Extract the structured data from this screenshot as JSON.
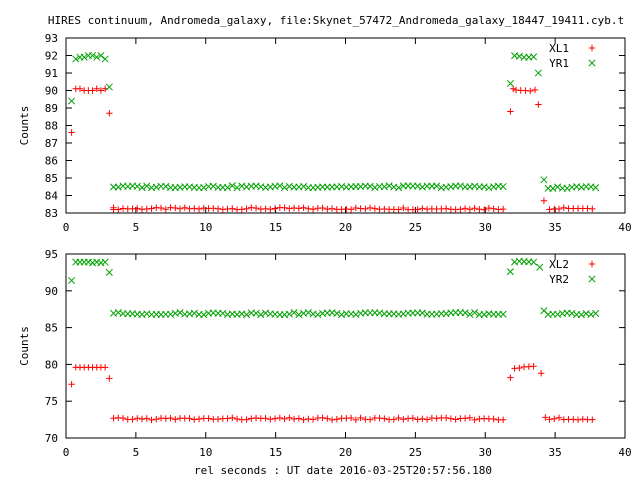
{
  "title": "HIRES continuum, Andromeda_galaxy, file:Skynet_57472_Andromeda_galaxy_18447_19411.cyb.t",
  "xlabel": "rel seconds : UT date 2016-03-25T20:57:56.180",
  "ylabel": "Counts",
  "colors": {
    "series_1": "#ff0000",
    "series_2": "#00a000"
  },
  "chart_data": [
    {
      "type": "scatter",
      "xlim": [
        0,
        40
      ],
      "ylim": [
        83,
        93
      ],
      "xticks": [
        0,
        5,
        10,
        15,
        20,
        25,
        30,
        35,
        40
      ],
      "yticks": [
        83,
        84,
        85,
        86,
        87,
        88,
        89,
        90,
        91,
        92,
        93
      ],
      "legend_position": "top-right",
      "series": [
        {
          "name": "XL1",
          "marker": "plus",
          "x": [
            0.4,
            0.7,
            1.0,
            1.3,
            1.6,
            1.9,
            2.2,
            2.5,
            2.8,
            3.1,
            3.4,
            33.8,
            34.2
          ],
          "y": [
            87.6,
            90.1,
            90.1,
            90.0,
            90.0,
            90.0,
            90.1,
            90.0,
            90.1,
            88.7,
            83.2,
            89.2,
            83.7
          ],
          "baseline": [
            {
              "from": 3.4,
              "to": 31.6,
              "value": 83.25
            },
            {
              "from": 32.2,
              "to": 33.6,
              "value": 90.0
            },
            {
              "from": 34.6,
              "to": 37.9,
              "value": 83.25
            }
          ],
          "extra_points": [
            [
              31.8,
              88.8
            ],
            [
              32.0,
              90.1
            ]
          ]
        },
        {
          "name": "YR1",
          "marker": "cross",
          "x": [
            0.4,
            0.7,
            1.0,
            1.3,
            1.6,
            1.9,
            2.2,
            2.5,
            2.8,
            3.1,
            31.8,
            33.8,
            34.2
          ],
          "y": [
            89.4,
            91.8,
            91.9,
            91.9,
            92.0,
            92.0,
            91.9,
            92.0,
            91.8,
            90.2,
            90.4,
            91.0,
            84.9
          ],
          "baseline": [
            {
              "from": 3.4,
              "to": 31.6,
              "value": 84.5
            },
            {
              "from": 32.1,
              "to": 33.6,
              "value": 91.95
            },
            {
              "from": 34.5,
              "to": 37.9,
              "value": 84.45
            }
          ],
          "extra_points": []
        }
      ]
    },
    {
      "type": "scatter",
      "xlim": [
        0,
        40
      ],
      "ylim": [
        70,
        95
      ],
      "xticks": [
        0,
        5,
        10,
        15,
        20,
        25,
        30,
        35,
        40
      ],
      "yticks": [
        70,
        75,
        80,
        85,
        90,
        95
      ],
      "legend_position": "top-right",
      "series": [
        {
          "name": "XL2",
          "marker": "plus",
          "x": [
            0.4,
            0.7,
            1.0,
            1.3,
            1.6,
            1.9,
            2.2,
            2.5,
            2.8,
            3.1,
            31.8,
            34.0,
            34.3
          ],
          "y": [
            77.3,
            79.6,
            79.6,
            79.6,
            79.6,
            79.6,
            79.6,
            79.6,
            79.6,
            78.1,
            78.2,
            78.8,
            72.8
          ],
          "baseline": [
            {
              "from": 3.4,
              "to": 31.6,
              "value": 72.6
            },
            {
              "from": 32.1,
              "to": 33.7,
              "value": 79.6
            },
            {
              "from": 34.6,
              "to": 37.9,
              "value": 72.6
            }
          ],
          "extra_points": []
        },
        {
          "name": "YR2",
          "marker": "cross",
          "x": [
            0.4,
            0.7,
            1.0,
            1.3,
            1.6,
            1.9,
            2.2,
            2.5,
            2.8,
            3.1,
            31.8,
            33.9,
            34.2
          ],
          "y": [
            91.4,
            93.9,
            93.9,
            93.9,
            93.9,
            93.8,
            93.9,
            93.8,
            93.9,
            92.5,
            92.6,
            93.2,
            87.3
          ],
          "baseline": [
            {
              "from": 3.4,
              "to": 31.6,
              "value": 86.9
            },
            {
              "from": 32.1,
              "to": 33.7,
              "value": 93.9
            },
            {
              "from": 34.5,
              "to": 37.9,
              "value": 86.9
            }
          ],
          "extra_points": []
        }
      ]
    }
  ]
}
